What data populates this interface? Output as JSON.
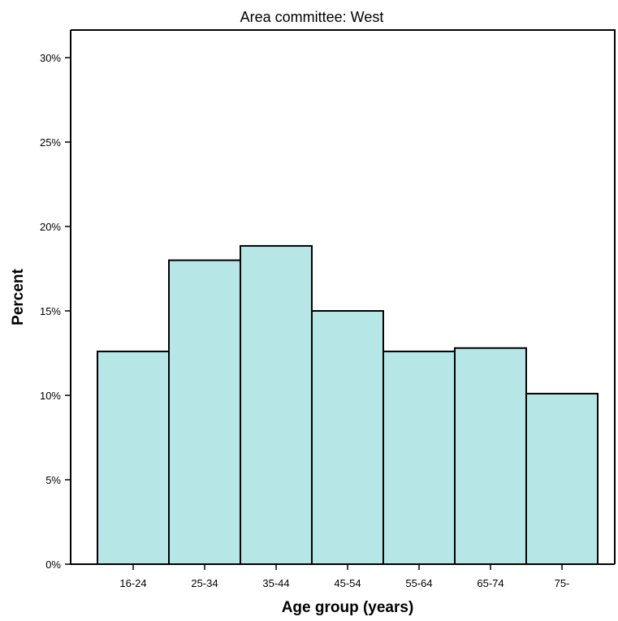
{
  "chart_data": {
    "type": "bar",
    "title": "Area committee: West",
    "xlabel": "Age group (years)",
    "ylabel": "Percent",
    "categories": [
      "16-24",
      "25-34",
      "35-44",
      "45-54",
      "55-64",
      "65-74",
      "75-"
    ],
    "values": [
      12.6,
      18.0,
      18.85,
      15.0,
      12.6,
      12.8,
      10.1
    ],
    "ylim": [
      0,
      31.5
    ],
    "yticks": [
      0,
      5,
      10,
      15,
      20,
      25,
      30
    ],
    "ytick_labels": [
      "0%",
      "5%",
      "10%",
      "15%",
      "20%",
      "25%",
      "30%"
    ],
    "grid": false,
    "bar_color": "#b7e6e7",
    "edge_color": "#000000"
  }
}
